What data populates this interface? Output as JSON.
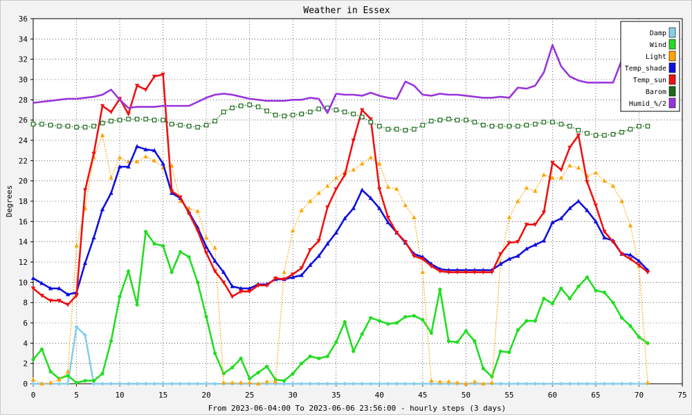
{
  "chart_data": {
    "type": "line",
    "title": "Weather in Essex",
    "xlabel": "From 2023-06-04:00 To 2023-06-06 23:56:00 - hourly steps (3 days)",
    "ylabel": "Degrees",
    "xlim": [
      0,
      75
    ],
    "ylim": [
      0,
      36
    ],
    "x_ticks": [
      0,
      5,
      10,
      15,
      20,
      25,
      30,
      35,
      40,
      45,
      50,
      55,
      60,
      65,
      70,
      75
    ],
    "y_ticks": [
      0,
      2,
      4,
      6,
      8,
      10,
      12,
      14,
      16,
      18,
      20,
      22,
      24,
      26,
      28,
      30,
      32,
      34,
      36
    ],
    "grid": true,
    "legend_position": "top-right",
    "series": [
      {
        "name": "Damp",
        "color": "#87ceeb",
        "marker": "diamond",
        "style": "solid",
        "x": [
          0,
          1,
          2,
          3,
          4,
          5,
          6,
          7,
          8,
          9,
          10,
          11,
          12,
          13,
          14,
          15,
          16,
          17,
          18,
          19,
          20,
          21,
          22,
          23,
          24,
          25,
          26,
          27,
          28,
          29,
          30,
          31,
          32,
          33,
          34,
          35,
          36,
          37,
          38,
          39,
          40,
          41,
          42,
          43,
          44,
          45,
          46,
          47,
          48,
          49,
          50,
          51,
          52,
          53,
          54,
          55,
          56,
          57,
          58,
          59,
          60,
          61,
          62,
          63,
          64,
          65,
          66,
          67,
          68,
          69,
          70,
          71
        ],
        "values": [
          0,
          0,
          0,
          0,
          0,
          5.6,
          4.8,
          0,
          0,
          0,
          0,
          0,
          0,
          0,
          0,
          0,
          0,
          0,
          0,
          0,
          0,
          0,
          0,
          0,
          0,
          0,
          0,
          0,
          0,
          0,
          0,
          0,
          0,
          0,
          0,
          0,
          0,
          0,
          0,
          0,
          0,
          0,
          0,
          0,
          0,
          0,
          0,
          0,
          0,
          0,
          0,
          0,
          0,
          0,
          0,
          0,
          0,
          0,
          0,
          0,
          0,
          0,
          0,
          0,
          0,
          0,
          0,
          0,
          0,
          0,
          0,
          0
        ]
      },
      {
        "name": "Wind",
        "color": "#22dd22",
        "marker": "circle",
        "style": "solid",
        "x": [
          0,
          1,
          2,
          3,
          4,
          5,
          6,
          7,
          8,
          9,
          10,
          11,
          12,
          13,
          14,
          15,
          16,
          17,
          18,
          19,
          20,
          21,
          22,
          23,
          24,
          25,
          26,
          27,
          28,
          29,
          30,
          31,
          32,
          33,
          34,
          35,
          36,
          37,
          38,
          39,
          40,
          41,
          42,
          43,
          44,
          45,
          46,
          47,
          48,
          49,
          50,
          51,
          52,
          53,
          54,
          55,
          56,
          57,
          58,
          59,
          60,
          61,
          62,
          63,
          64,
          65,
          66,
          67,
          68,
          69,
          70,
          71
        ],
        "values": [
          2.4,
          3.4,
          1.2,
          0.5,
          0.8,
          0.1,
          0.3,
          0.3,
          1,
          4.2,
          8.6,
          11.1,
          7.8,
          15,
          13.8,
          13.6,
          11,
          13,
          12.5,
          10,
          6.6,
          3,
          1,
          1.6,
          2.5,
          0.5,
          1.1,
          1.7,
          0.4,
          0.3,
          1,
          2,
          2.7,
          2.5,
          2.7,
          4.1,
          6.1,
          3.2,
          4.9,
          6.5,
          6.2,
          5.9,
          6,
          6.6,
          6.7,
          6.3,
          5,
          9.3,
          4.2,
          4.1,
          5.2,
          4.2,
          1.5,
          0.7,
          3.2,
          3.1,
          5.3,
          6.2,
          6.2,
          8.4,
          7.9,
          9.4,
          8.4,
          9.6,
          10.5,
          9.2,
          9,
          8,
          6.5,
          5.7,
          4.6,
          4
        ]
      },
      {
        "name": "Light",
        "color": "#ffa500",
        "marker": "triangle-up",
        "style": "dotted",
        "x": [
          0,
          1,
          2,
          3,
          4,
          5,
          6,
          7,
          8,
          9,
          10,
          11,
          12,
          13,
          14,
          15,
          16,
          17,
          18,
          19,
          20,
          21,
          22,
          23,
          24,
          25,
          26,
          27,
          28,
          29,
          30,
          31,
          32,
          33,
          34,
          35,
          36,
          37,
          38,
          39,
          40,
          41,
          42,
          43,
          44,
          45,
          46,
          47,
          48,
          49,
          50,
          51,
          52,
          53,
          54,
          55,
          56,
          57,
          58,
          59,
          60,
          61,
          62,
          63,
          64,
          65,
          66,
          67,
          68,
          69,
          70,
          71
        ],
        "values": [
          0.4,
          0,
          0.1,
          0.4,
          1.2,
          13.6,
          17.3,
          22.3,
          24.5,
          20.3,
          22.3,
          21.9,
          21.9,
          22.4,
          22,
          21.3,
          21.5,
          18,
          17.3,
          17,
          14.4,
          13.4,
          0.1,
          0.1,
          0.1,
          0.1,
          0,
          0.2,
          0.2,
          11,
          15.1,
          17.1,
          18,
          18.8,
          19.5,
          20.3,
          20.8,
          21.1,
          21.7,
          22.3,
          21.7,
          19.4,
          19.2,
          17.6,
          16.4,
          11,
          0.3,
          0.2,
          0.2,
          0.1,
          0,
          0.2,
          0,
          0.1,
          12,
          16.4,
          18,
          19.3,
          19,
          20.6,
          20.3,
          20.3,
          21.5,
          21.3,
          20.5,
          20.8,
          20,
          19.5,
          18,
          15.6,
          11.6,
          0.1
        ]
      },
      {
        "name": "Temp_shade",
        "color": "#1010dd",
        "marker": "triangle-up",
        "style": "solid",
        "x": [
          0,
          1,
          2,
          3,
          4,
          5,
          6,
          7,
          8,
          9,
          10,
          11,
          12,
          13,
          14,
          15,
          16,
          17,
          18,
          19,
          20,
          21,
          22,
          23,
          24,
          25,
          26,
          27,
          28,
          29,
          30,
          31,
          32,
          33,
          34,
          35,
          36,
          37,
          38,
          39,
          40,
          41,
          42,
          43,
          44,
          45,
          46,
          47,
          48,
          49,
          50,
          51,
          52,
          53,
          54,
          55,
          56,
          57,
          58,
          59,
          60,
          61,
          62,
          63,
          64,
          65,
          66,
          67,
          68,
          69,
          70,
          71
        ],
        "values": [
          10.4,
          9.9,
          9.4,
          9.4,
          8.8,
          9,
          11.9,
          14.4,
          17.2,
          18.8,
          21.4,
          21.4,
          23.4,
          23.1,
          23,
          21.7,
          18.8,
          18.3,
          16.9,
          15.4,
          13.5,
          12.1,
          11,
          9.6,
          9.4,
          9.4,
          9.8,
          9.8,
          10.3,
          10.3,
          10.5,
          10.7,
          11.7,
          12.6,
          13.8,
          14.9,
          16.3,
          17.3,
          19.1,
          18.3,
          17.3,
          15.9,
          14.9,
          13.9,
          12.8,
          12.5,
          11.8,
          11.3,
          11.2,
          11.2,
          11.2,
          11.2,
          11.2,
          11.2,
          11.8,
          12.3,
          12.6,
          13.3,
          13.7,
          14.1,
          15.9,
          16.3,
          17.3,
          18,
          17.1,
          16,
          14.4,
          14.1,
          12.8,
          12.7,
          12.1,
          11.2
        ]
      },
      {
        "name": "Temp_sun",
        "color": "#ee1111",
        "marker": "triangle-down",
        "style": "solid",
        "x": [
          0,
          1,
          2,
          3,
          4,
          5,
          6,
          7,
          8,
          9,
          10,
          11,
          12,
          13,
          14,
          15,
          16,
          17,
          18,
          19,
          20,
          21,
          22,
          23,
          24,
          25,
          26,
          27,
          28,
          29,
          30,
          31,
          32,
          33,
          34,
          35,
          36,
          37,
          38,
          39,
          40,
          41,
          42,
          43,
          44,
          45,
          46,
          47,
          48,
          49,
          50,
          51,
          52,
          53,
          54,
          55,
          56,
          57,
          58,
          59,
          60,
          61,
          62,
          63,
          64,
          65,
          66,
          67,
          68,
          69,
          70,
          71
        ],
        "values": [
          9.4,
          8.7,
          8.2,
          8.2,
          7.8,
          8.7,
          19.1,
          22.7,
          27.4,
          26.8,
          28.1,
          26.6,
          29.4,
          29,
          30.3,
          30.5,
          19,
          18.4,
          16.8,
          15.1,
          12.9,
          11.1,
          10,
          8.6,
          9.1,
          9.1,
          9.7,
          9.7,
          10.4,
          10.3,
          10.8,
          11.4,
          13.2,
          14.1,
          17.4,
          19.2,
          20.6,
          24,
          27,
          26.1,
          19.2,
          16.4,
          14.9,
          14,
          12.6,
          12.3,
          11.6,
          11.1,
          11,
          11,
          11,
          11,
          11,
          11,
          12.8,
          13.9,
          14,
          15.7,
          15.7,
          16.9,
          21.8,
          21.1,
          23.3,
          24.5,
          19.9,
          17.6,
          15,
          14,
          12.8,
          12.3,
          11.7,
          11
        ]
      },
      {
        "name": "Barom",
        "color": "#1a6b1a",
        "marker": "square",
        "style": "dotted",
        "x": [
          0,
          1,
          2,
          3,
          4,
          5,
          6,
          7,
          8,
          9,
          10,
          11,
          12,
          13,
          14,
          15,
          16,
          17,
          18,
          19,
          20,
          21,
          22,
          23,
          24,
          25,
          26,
          27,
          28,
          29,
          30,
          31,
          32,
          33,
          34,
          35,
          36,
          37,
          38,
          39,
          40,
          41,
          42,
          43,
          44,
          45,
          46,
          47,
          48,
          49,
          50,
          51,
          52,
          53,
          54,
          55,
          56,
          57,
          58,
          59,
          60,
          61,
          62,
          63,
          64,
          65,
          66,
          67,
          68,
          69,
          70,
          71
        ],
        "values": [
          25.6,
          25.6,
          25.5,
          25.4,
          25.4,
          25.3,
          25.3,
          25.4,
          25.7,
          25.9,
          26,
          26.1,
          26.1,
          26.1,
          26,
          26,
          25.6,
          25.5,
          25.4,
          25.3,
          25.5,
          25.9,
          26.8,
          27.2,
          27.4,
          27.5,
          27.3,
          26.9,
          26.5,
          26.4,
          26.5,
          26.6,
          26.8,
          27.1,
          27.2,
          27,
          26.8,
          26.6,
          26.3,
          25.8,
          25.4,
          25.1,
          25.1,
          25,
          25.1,
          25.5,
          25.9,
          26,
          26.1,
          26,
          26,
          25.8,
          25.5,
          25.4,
          25.4,
          25.4,
          25.4,
          25.5,
          25.6,
          25.8,
          25.8,
          25.6,
          25.4,
          25,
          24.7,
          24.5,
          24.5,
          24.6,
          24.8,
          25.1,
          25.4,
          25.4
        ]
      },
      {
        "name": "Humid_%/2",
        "color": "#9933dd",
        "marker": "none",
        "style": "solid",
        "x": [
          0,
          1,
          2,
          3,
          4,
          5,
          6,
          7,
          8,
          9,
          10,
          11,
          12,
          13,
          14,
          15,
          16,
          17,
          18,
          19,
          20,
          21,
          22,
          23,
          24,
          25,
          26,
          27,
          28,
          29,
          30,
          31,
          32,
          33,
          34,
          35,
          36,
          37,
          38,
          39,
          40,
          41,
          42,
          43,
          44,
          45,
          46,
          47,
          48,
          49,
          50,
          51,
          52,
          53,
          54,
          55,
          56,
          57,
          58,
          59,
          60,
          61,
          62,
          63,
          64,
          65,
          66,
          67,
          68,
          69,
          70
        ],
        "values": [
          27.7,
          27.8,
          27.9,
          28,
          28.1,
          28.1,
          28.2,
          28.3,
          28.5,
          29,
          28,
          27.2,
          27.3,
          27.3,
          27.3,
          27.4,
          27.4,
          27.4,
          27.4,
          27.8,
          28.2,
          28.5,
          28.6,
          28.5,
          28.3,
          28.1,
          28,
          27.9,
          27.9,
          27.9,
          28,
          28,
          28.2,
          28.1,
          26.7,
          28.6,
          28.5,
          28.5,
          28.4,
          28.7,
          28.4,
          28.2,
          28.1,
          29.8,
          29.4,
          28.5,
          28.4,
          28.6,
          28.5,
          28.5,
          28.4,
          28.3,
          28.2,
          28.2,
          28.3,
          28.2,
          29.2,
          29.1,
          29.4,
          30.7,
          33.4,
          31.3,
          30.3,
          29.9,
          29.7,
          29.7,
          29.7,
          29.7,
          31.9,
          30.9,
          30.7
        ]
      }
    ]
  }
}
